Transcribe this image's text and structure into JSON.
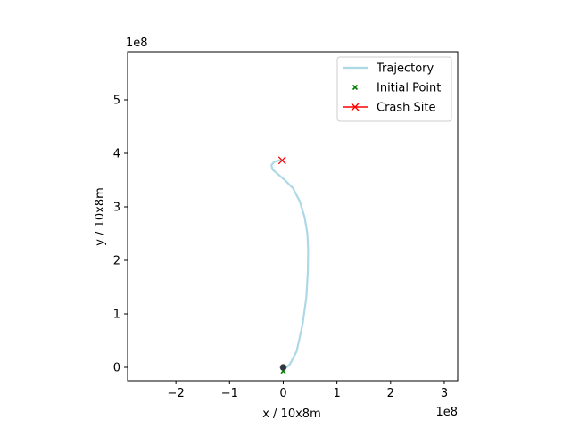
{
  "chart_data": {
    "type": "line",
    "xlabel": "x / 10x8m",
    "ylabel": "y / 10x8m",
    "x_offset_label": "1e8",
    "y_offset_label": "1e8",
    "xlim": [
      -2.9,
      3.25
    ],
    "ylim": [
      -0.25,
      5.9
    ],
    "x_ticks": [
      -2,
      -1,
      0,
      1,
      2,
      3
    ],
    "y_ticks": [
      0,
      1,
      2,
      3,
      4,
      5
    ],
    "x_tick_labels": [
      "−2",
      "−1",
      "0",
      "1",
      "2",
      "3"
    ],
    "y_tick_labels": [
      "0",
      "1",
      "2",
      "3",
      "4",
      "5"
    ],
    "grid": false,
    "legend_position": "top-right",
    "series": [
      {
        "name": "Trajectory",
        "kind": "line",
        "color": "#add8e6",
        "x": [
          0.0,
          0.12,
          0.25,
          0.36,
          0.43,
          0.46,
          0.465,
          0.45,
          0.4,
          0.31,
          0.18,
          0.03,
          -0.12,
          -0.2,
          -0.22,
          -0.17,
          -0.08,
          0.0
        ],
        "y": [
          -0.05,
          0.05,
          0.3,
          0.8,
          1.3,
          1.8,
          2.2,
          2.5,
          2.8,
          3.1,
          3.35,
          3.5,
          3.63,
          3.7,
          3.78,
          3.84,
          3.87,
          3.87
        ]
      },
      {
        "name": "Initial Point",
        "kind": "marker",
        "marker": "x-small",
        "color": "#008000",
        "x": [
          0.0
        ],
        "y": [
          -0.07
        ]
      },
      {
        "name": "Crash Site",
        "kind": "marker",
        "marker": "x",
        "color": "#ff0000",
        "x": [
          -0.02
        ],
        "y": [
          3.87
        ]
      },
      {
        "name": "",
        "kind": "body",
        "color": "#2f3640",
        "x": [
          0.0
        ],
        "y": [
          0.0
        ]
      }
    ]
  }
}
